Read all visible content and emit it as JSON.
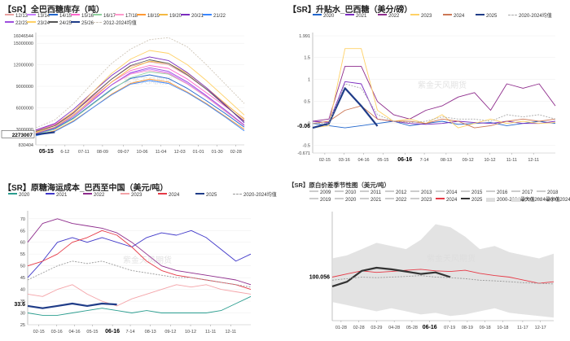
{
  "chart_data": [
    {
      "id": "p1",
      "type": "line",
      "title": "【SR】全巴西糖库存（吨）",
      "legend": [
        "12/13",
        "13/14",
        "14/15",
        "15/16",
        "16/17",
        "17/18",
        "18/19",
        "19/20",
        "20/21",
        "21/22",
        "22/23",
        "23/24",
        "24/25",
        "25/26",
        "2012-2024均值"
      ],
      "y_ticks": [
        {
          "label": "16046544",
          "v": 16046544
        },
        {
          "label": "15000000",
          "v": 15000000
        },
        {
          "label": "12000000",
          "v": 12000000
        },
        {
          "label": "9000000",
          "v": 9000000
        },
        {
          "label": "6000000",
          "v": 6000000
        },
        {
          "label": "3000000",
          "v": 3000000
        },
        {
          "label": "830404",
          "v": 830404
        }
      ],
      "ylim": [
        830404,
        16046544
      ],
      "x_ticks": [
        "05-15",
        "6-12",
        "07-11",
        "08-09",
        "09-07",
        "10-06",
        "11-04",
        "12-03",
        "01-01",
        "01-30",
        "02-28"
      ],
      "x_tick_positions": [
        0.05,
        0.14,
        0.23,
        0.32,
        0.42,
        0.51,
        0.6,
        0.69,
        0.78,
        0.87,
        0.96
      ],
      "highlight_x": "05-15",
      "highlight_value": "2273007",
      "series": [
        {
          "name": "12/13",
          "color": "#e8a0a0",
          "values": [
            2800000,
            3600000,
            5500000,
            7800000,
            10000000,
            11800000,
            12400000,
            12000000,
            10500000,
            8600000,
            6500000,
            4500000
          ]
        },
        {
          "name": "13/14",
          "color": "#c77dff",
          "values": [
            2600000,
            3300000,
            5000000,
            7200000,
            9200000,
            10800000,
            11400000,
            10900000,
            9400000,
            7600000,
            5600000,
            3500000
          ]
        },
        {
          "name": "14/15",
          "color": "#2266cc",
          "values": [
            2400000,
            3100000,
            4600000,
            6600000,
            8600000,
            10100000,
            10600000,
            10100000,
            8700000,
            7000000,
            5200000,
            3300000
          ]
        },
        {
          "name": "15/16",
          "color": "#ff66cc",
          "values": [
            2900000,
            3700000,
            5400000,
            7500000,
            9600000,
            11200000,
            11900000,
            11500000,
            10000000,
            8100000,
            6200000,
            4200000
          ]
        },
        {
          "name": "16/17",
          "color": "#8fd19e",
          "values": [
            2300000,
            3000000,
            4500000,
            6500000,
            8500000,
            10200000,
            11000000,
            10700000,
            9300000,
            7500000,
            5500000,
            3600000
          ]
        },
        {
          "name": "17/18",
          "color": "#ff99cc",
          "values": [
            2700000,
            3500000,
            5100000,
            7100000,
            9200000,
            10700000,
            11200000,
            10800000,
            9300000,
            7500000,
            5500000,
            3500000
          ]
        },
        {
          "name": "18/19",
          "color": "#ff9933",
          "values": [
            2200000,
            2800000,
            4200000,
            6000000,
            7900000,
            9400000,
            10000000,
            9600000,
            8200000,
            6600000,
            4800000,
            3000000
          ]
        },
        {
          "name": "19/20",
          "color": "#f4b942",
          "values": [
            2500000,
            3300000,
            5000000,
            7300000,
            9600000,
            11500000,
            12500000,
            12200000,
            10800000,
            8800000,
            6600000,
            4400000
          ]
        },
        {
          "name": "20/21",
          "color": "#7b2cbf",
          "values": [
            2900000,
            3800000,
            5800000,
            8200000,
            10500000,
            12300000,
            13100000,
            12600000,
            10900000,
            8800000,
            6400000,
            3900000
          ]
        },
        {
          "name": "21/22",
          "color": "#3a86ff",
          "values": [
            2100000,
            2700000,
            4100000,
            6000000,
            7800000,
            9300000,
            9800000,
            9400000,
            8100000,
            6500000,
            4700000,
            2800000
          ]
        },
        {
          "name": "22/23",
          "color": "#9d4edd",
          "values": [
            2400000,
            3200000,
            4800000,
            7000000,
            9200000,
            10900000,
            11600000,
            11100000,
            9600000,
            7700000,
            5700000,
            3600000
          ]
        },
        {
          "name": "23/24",
          "color": "#ffd166",
          "values": [
            2600000,
            3500000,
            5500000,
            8200000,
            10800000,
            12800000,
            14000000,
            13600000,
            12000000,
            9800000,
            7400000,
            5000000
          ]
        },
        {
          "name": "24/25",
          "color": "#555555",
          "values": [
            2700000,
            3500000,
            5300000,
            7700000,
            10000000,
            11900000,
            12700000,
            12200000,
            10600000,
            8600000,
            6300000,
            4100000
          ]
        },
        {
          "name": "25/26",
          "color": "#1f3c88",
          "values": [
            2273007,
            2600000
          ]
        },
        {
          "name": "2012-2024均值",
          "color": "#cfc6b8",
          "values": [
            3200000,
            4300000,
            6600000,
            9500000,
            12200000,
            14200000,
            15500000,
            15800000,
            14500000,
            12000000,
            9300000,
            6600000
          ]
        }
      ]
    },
    {
      "id": "p2",
      "type": "line",
      "title": "【SR】升贴水_巴西糖（美分/磅）",
      "legend": [
        "2020",
        "2021",
        "2022",
        "2023",
        "2024",
        "2025",
        "2020-2024均值"
      ],
      "y_ticks": [
        {
          "label": "1.991",
          "v": 1.991
        },
        {
          "label": "1.5",
          "v": 1.5
        },
        {
          "label": "1",
          "v": 1.0
        },
        {
          "label": "0.5",
          "v": 0.5
        },
        {
          "label": "0",
          "v": 0
        },
        {
          "label": "-0.06",
          "v": -0.06
        },
        {
          "label": "-0.5",
          "v": -0.5
        },
        {
          "label": "-0.671",
          "v": -0.671
        }
      ],
      "ylim": [
        -0.671,
        1.991
      ],
      "x_ticks": [
        "02-15",
        "03-16",
        "04-16",
        "05-15",
        "06-16",
        "7-14",
        "08-13",
        "09-12",
        "10-12",
        "11-11",
        "12-11"
      ],
      "x_tick_positions": [
        0.05,
        0.13,
        0.21,
        0.29,
        0.38,
        0.46,
        0.55,
        0.64,
        0.73,
        0.82,
        0.91
      ],
      "highlight_x": "06-16",
      "highlight_value": "-0.06",
      "series": [
        {
          "name": "2020",
          "color": "#2266cc",
          "values": [
            0.0,
            -0.05,
            -0.1,
            -0.05,
            0.0,
            0.05,
            -0.05,
            0.0,
            0.05,
            -0.02,
            0.0,
            0.02,
            -0.05,
            0.0,
            0.05,
            0.0
          ]
        },
        {
          "name": "2021",
          "color": "#7b2cbf",
          "values": [
            0.05,
            0.02,
            0.95,
            0.9,
            0.1,
            0.05,
            0.0,
            -0.02,
            0.0,
            0.05,
            0.02,
            0.0,
            0.05,
            0.0,
            0.0,
            0.05
          ]
        },
        {
          "name": "2022",
          "color": "#8e2c8c",
          "values": [
            0.05,
            0.1,
            1.3,
            1.3,
            0.5,
            0.2,
            0.1,
            0.3,
            0.4,
            0.6,
            0.7,
            0.3,
            0.9,
            0.8,
            0.9,
            0.4
          ]
        },
        {
          "name": "2023",
          "color": "#ffd166",
          "values": [
            -0.1,
            -0.05,
            1.7,
            1.7,
            0.3,
            0.05,
            0.1,
            0.0,
            0.2,
            -0.1,
            0.0,
            0.1,
            0.0,
            0.05,
            0.0,
            0.02
          ]
        },
        {
          "name": "2024",
          "color": "#cc7755",
          "values": [
            0.0,
            0.05,
            0.3,
            0.4,
            0.1,
            0.05,
            0.05,
            0.0,
            0.1,
            0.05,
            -0.1,
            -0.05,
            0.05,
            0.1,
            0.05,
            0.1
          ]
        },
        {
          "name": "2025",
          "color": "#1f3c88",
          "values": [
            -0.1,
            0.0,
            0.8,
            0.4,
            -0.06
          ]
        },
        {
          "name": "2020-2024均值",
          "color": "#aaaaaa",
          "values": [
            0.0,
            0.0,
            0.9,
            0.8,
            0.2,
            0.05,
            0.02,
            0.05,
            0.15,
            0.1,
            0.1,
            0.05,
            0.2,
            0.15,
            0.2,
            0.1
          ]
        }
      ]
    },
    {
      "id": "p3",
      "type": "line",
      "title": "【SR】原糖海运成本_巴西至中国（美元/吨）",
      "legend": [
        "2020",
        "2021",
        "2022",
        "2023",
        "2024",
        "2025",
        "2020-2024均值"
      ],
      "y_ticks": [
        {
          "label": "70",
          "v": 70
        },
        {
          "label": "65",
          "v": 65
        },
        {
          "label": "60",
          "v": 60
        },
        {
          "label": "55",
          "v": 55
        },
        {
          "label": "50",
          "v": 50
        },
        {
          "label": "45",
          "v": 45
        },
        {
          "label": "40",
          "v": 40
        },
        {
          "label": "35",
          "v": 35
        },
        {
          "label": "33.6",
          "v": 33.6
        },
        {
          "label": "30",
          "v": 30
        },
        {
          "label": "25",
          "v": 25
        }
      ],
      "ylim": [
        25,
        72
      ],
      "x_ticks": [
        "02-15",
        "03-16",
        "04-16",
        "05-15",
        "06-16",
        "7-14",
        "08-13",
        "09-12",
        "10-12",
        "11-11",
        "12-11"
      ],
      "x_tick_positions": [
        0.05,
        0.13,
        0.21,
        0.29,
        0.38,
        0.46,
        0.55,
        0.64,
        0.73,
        0.82,
        0.91
      ],
      "highlight_x": "06-16",
      "highlight_value": "33.6",
      "series": [
        {
          "name": "2020",
          "color": "#2a9d8f",
          "values": [
            30,
            29,
            29,
            30,
            31,
            32,
            31,
            30,
            31,
            30,
            30,
            30,
            30,
            31,
            34,
            37
          ]
        },
        {
          "name": "2021",
          "color": "#3f37c9",
          "values": [
            45,
            52,
            60,
            62,
            60,
            62,
            60,
            58,
            62,
            64,
            63,
            65,
            62,
            57,
            52,
            55
          ]
        },
        {
          "name": "2022",
          "color": "#8e2c8c",
          "values": [
            60,
            68,
            70,
            68,
            67,
            66,
            64,
            60,
            55,
            50,
            48,
            47,
            46,
            45,
            44,
            42
          ]
        },
        {
          "name": "2023",
          "color": "#f4a3a8",
          "values": [
            38,
            37,
            40,
            42,
            38,
            35,
            33,
            36,
            38,
            40,
            42,
            41,
            42,
            40,
            39,
            38
          ]
        },
        {
          "name": "2024",
          "color": "#e63946",
          "values": [
            50,
            52,
            55,
            60,
            62,
            65,
            63,
            58,
            52,
            48,
            46,
            45,
            44,
            43,
            42,
            40
          ]
        },
        {
          "name": "2025",
          "color": "#1f3c88",
          "values": [
            33,
            32,
            33,
            34,
            33,
            34,
            33.6
          ]
        },
        {
          "name": "2020-2024均值",
          "color": "#999999",
          "values": [
            44,
            47,
            50,
            52,
            51,
            52,
            50,
            48,
            47,
            46,
            45,
            45,
            44,
            43,
            42,
            41
          ]
        }
      ]
    },
    {
      "id": "p4",
      "type": "area",
      "title": "【SR】原白价差季节性图（美元/吨）",
      "legend": [
        "2009",
        "2010",
        "2011",
        "2012",
        "2013",
        "2014",
        "2015",
        "2016",
        "2017",
        "2018",
        "2019",
        "2020",
        "2021",
        "2022",
        "2023",
        "2024",
        "2025",
        "2000-2024最大值",
        "2000-2024最小值",
        "2000-2024均值"
      ],
      "y_ticks": [
        {
          "label": "100.056",
          "v": 100.056
        }
      ],
      "ylim": [
        -40,
        300
      ],
      "x_ticks": [
        "01-28",
        "02-28",
        "03-29",
        "04-28",
        "05-28",
        "06-16",
        "07-19",
        "08-19",
        "09-18",
        "10-18",
        "11-17",
        "12-17"
      ],
      "x_tick_positions": [
        0.04,
        0.12,
        0.2,
        0.28,
        0.36,
        0.44,
        0.53,
        0.61,
        0.69,
        0.77,
        0.86,
        0.94
      ],
      "highlight_x": "06-16",
      "highlight_value": "100.056",
      "series": [
        {
          "name": "2000-2024最大值",
          "color": "#dddddd",
          "values": [
            160,
            170,
            190,
            210,
            200,
            190,
            220,
            270,
            260,
            230,
            190,
            200,
            180,
            170,
            160,
            175
          ]
        },
        {
          "name": "2000-2024最小值",
          "color": "#dddddd",
          "values": [
            20,
            10,
            0,
            -10,
            0,
            -10,
            -20,
            -15,
            -25,
            -20,
            -10,
            0,
            -15,
            -20,
            -25,
            -30
          ]
        },
        {
          "name": "2024",
          "color": "#e63946",
          "values": [
            100,
            110,
            120,
            115,
            118,
            122,
            125,
            120,
            118,
            122,
            112,
            105,
            100,
            90,
            80,
            85
          ]
        },
        {
          "name": "2025",
          "color": "#333333",
          "values": [
            70,
            85,
            120,
            130,
            125,
            118,
            110,
            115,
            100
          ]
        },
        {
          "name": "2000-2024均值",
          "color": "#999999",
          "values": [
            90,
            95,
            100,
            98,
            100,
            102,
            105,
            100,
            98,
            95,
            90,
            88,
            85,
            82,
            80,
            78
          ]
        }
      ]
    }
  ],
  "watermark": "紫金天风期货"
}
